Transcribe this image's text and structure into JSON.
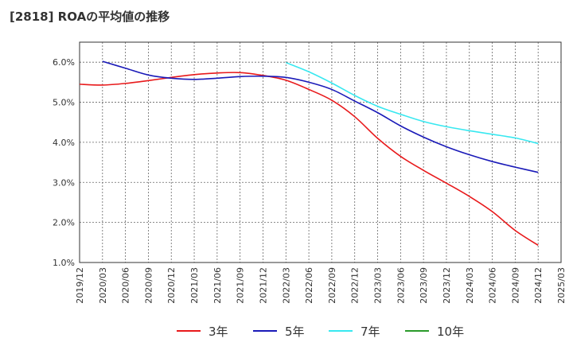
{
  "title": "[2818]  ROAの平均値の推移",
  "chart_data": {
    "type": "line",
    "title": "[2818]  ROAの平均値の推移",
    "xlabel": "",
    "ylabel": "",
    "ylim": [
      1.0,
      6.5
    ],
    "yticks": [
      "1.0%",
      "2.0%",
      "3.0%",
      "4.0%",
      "5.0%",
      "6.0%"
    ],
    "xticks": [
      "2019/12",
      "2020/03",
      "2020/06",
      "2020/09",
      "2020/12",
      "2021/03",
      "2021/06",
      "2021/09",
      "2021/12",
      "2022/03",
      "2022/06",
      "2022/09",
      "2022/12",
      "2023/03",
      "2023/06",
      "2023/09",
      "2023/12",
      "2024/03",
      "2024/06",
      "2024/09",
      "2024/12",
      "2025/03"
    ],
    "grid": true,
    "legend_position": "bottom",
    "series": [
      {
        "name": "3年",
        "color": "#e8191b",
        "x": [
          "2019/12",
          "2020/03",
          "2020/06",
          "2020/09",
          "2020/12",
          "2021/03",
          "2021/06",
          "2021/09",
          "2021/12",
          "2022/03",
          "2022/06",
          "2022/09",
          "2022/12",
          "2023/03",
          "2023/06",
          "2023/09",
          "2023/12",
          "2024/03",
          "2024/06",
          "2024/09",
          "2024/12"
        ],
        "values": [
          5.45,
          5.43,
          5.47,
          5.54,
          5.62,
          5.69,
          5.73,
          5.74,
          5.67,
          5.55,
          5.32,
          5.05,
          4.64,
          4.1,
          3.65,
          3.3,
          2.98,
          2.65,
          2.27,
          1.8,
          1.43
        ]
      },
      {
        "name": "5年",
        "color": "#1a1ab8",
        "x": [
          "2020/03",
          "2020/06",
          "2020/09",
          "2020/12",
          "2021/03",
          "2021/06",
          "2021/09",
          "2021/12",
          "2022/03",
          "2022/06",
          "2022/09",
          "2022/12",
          "2023/03",
          "2023/06",
          "2023/09",
          "2023/12",
          "2024/03",
          "2024/06",
          "2024/09",
          "2024/12"
        ],
        "values": [
          6.02,
          5.85,
          5.68,
          5.6,
          5.57,
          5.6,
          5.64,
          5.65,
          5.62,
          5.5,
          5.32,
          5.03,
          4.74,
          4.41,
          4.13,
          3.89,
          3.69,
          3.52,
          3.38,
          3.25
        ]
      },
      {
        "name": "7年",
        "color": "#38e8f0",
        "x": [
          "2022/03",
          "2022/06",
          "2022/09",
          "2022/12",
          "2023/03",
          "2023/06",
          "2023/09",
          "2023/12",
          "2024/03",
          "2024/06",
          "2024/09",
          "2024/12"
        ],
        "values": [
          5.99,
          5.76,
          5.48,
          5.17,
          4.9,
          4.7,
          4.52,
          4.39,
          4.29,
          4.2,
          4.11,
          3.97
        ]
      },
      {
        "name": "10年",
        "color": "#2a9a2a",
        "x": [],
        "values": []
      }
    ]
  }
}
